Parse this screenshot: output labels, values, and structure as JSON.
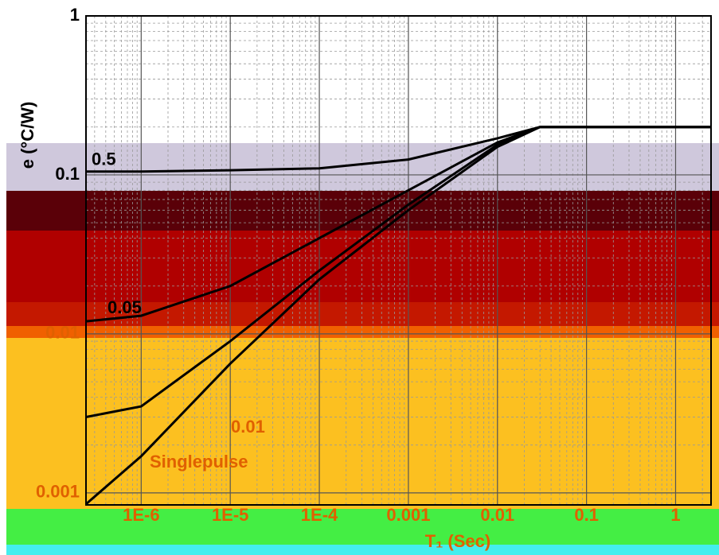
{
  "chart_data": {
    "type": "line",
    "y_label": "e (°C/W)",
    "x_label": "T₁ (Sec)",
    "log_x": true,
    "log_y": true,
    "grid": true,
    "minor_grid": true,
    "xlim": [
      2.4e-07,
      2.5
    ],
    "xticks": [
      {
        "value": 1e-06,
        "label": "1E-6"
      },
      {
        "value": 1e-05,
        "label": "1E-5"
      },
      {
        "value": 0.0001,
        "label": "1E-4"
      },
      0.001,
      0.01,
      0.1,
      1
    ],
    "ylim": [
      0.00084,
      1
    ],
    "yticks": [
      0.001,
      0.01,
      0.1,
      1
    ],
    "x": [
      2.4e-07,
      1e-06,
      1e-05,
      0.0001,
      0.001,
      0.01,
      0.03,
      0.1,
      1,
      2.5
    ],
    "series": [
      {
        "name": "0.5",
        "color": "#000000",
        "values": [
          0.105,
          0.105,
          0.107,
          0.11,
          0.125,
          0.17,
          0.2,
          0.2,
          0.2,
          0.2
        ]
      },
      {
        "name": "0.05",
        "color": "#000000",
        "values": [
          0.012,
          0.013,
          0.02,
          0.04,
          0.08,
          0.16,
          0.2,
          0.2,
          0.2,
          0.2
        ]
      },
      {
        "name": "0.01",
        "color": "#000000",
        "values": [
          0.003,
          0.0035,
          0.009,
          0.025,
          0.065,
          0.155,
          0.2,
          0.2,
          0.2,
          0.2
        ]
      },
      {
        "name": "Singlepulse",
        "color": "#000000",
        "values": [
          0.00085,
          0.0017,
          0.0065,
          0.022,
          0.06,
          0.15,
          0.2,
          0.2,
          0.2,
          0.2
        ]
      }
    ]
  }
}
